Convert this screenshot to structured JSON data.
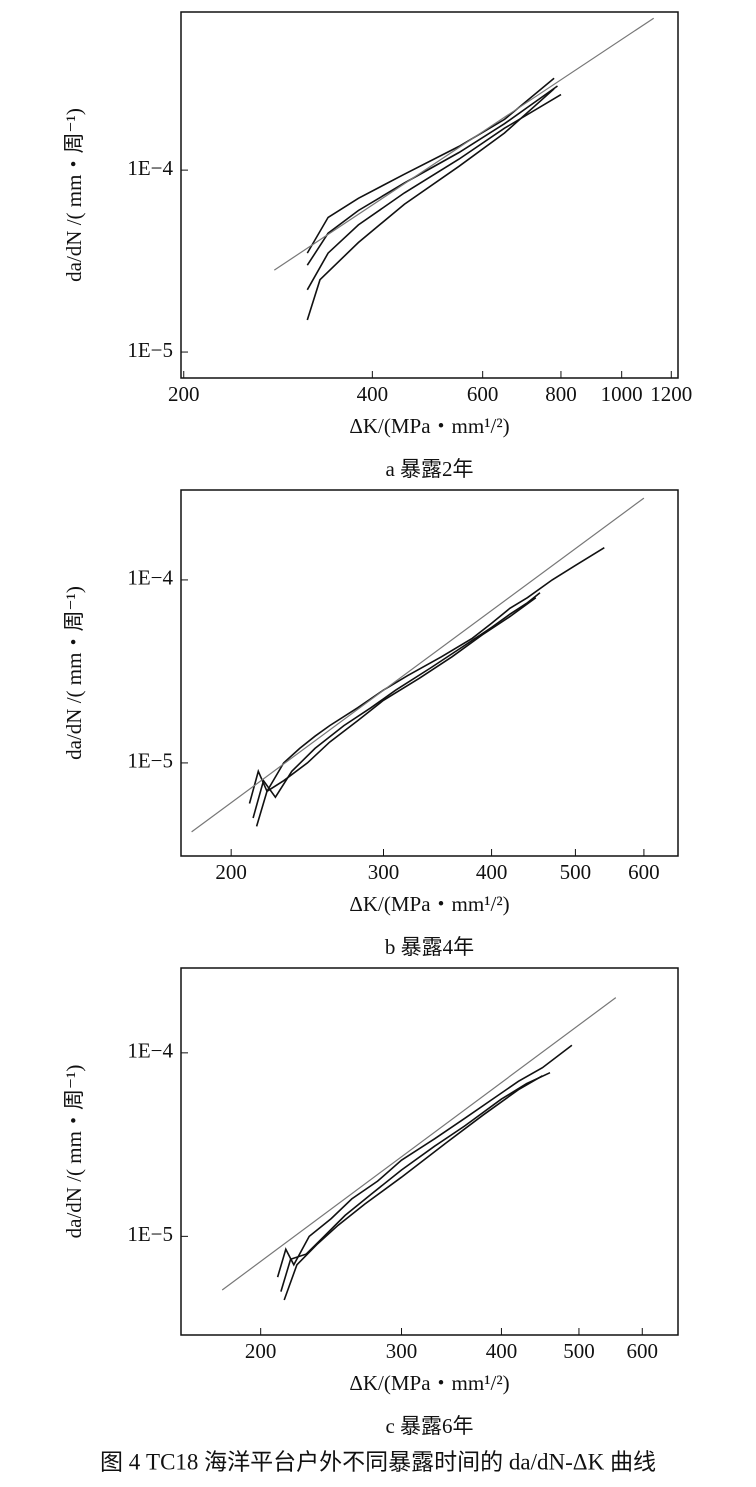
{
  "chart_data": [
    {
      "type": "line",
      "xscale": "log",
      "yscale": "log",
      "xlabel": "ΔK/(MPa・mm¹/²)",
      "ylabel": "da/dN /( mm・周⁻¹)",
      "caption": "a  暴露2年",
      "xlim": [
        198,
        1230
      ],
      "ylim": [
        7.2e-06,
        0.00074
      ],
      "xticks": [
        200,
        400,
        600,
        800,
        1000,
        1200
      ],
      "yticks": [
        {
          "value": 1e-05,
          "label": "1E−5"
        },
        {
          "value": 0.0001,
          "label": "1E−4"
        }
      ],
      "series": [
        {
          "color": "#111111",
          "x": [
            315,
            340,
            380,
            450,
            550,
            650,
            780
          ],
          "values": [
            3.5e-05,
            5.5e-05,
            7e-05,
            9.5e-05,
            0.000135,
            0.00019,
            0.00032
          ]
        },
        {
          "color": "#111111",
          "x": [
            315,
            340,
            380,
            450,
            550,
            650,
            790
          ],
          "values": [
            3e-05,
            4.5e-05,
            6e-05,
            8.5e-05,
            0.000125,
            0.00018,
            0.00029
          ]
        },
        {
          "color": "#111111",
          "x": [
            315,
            340,
            380,
            450,
            550,
            650,
            800
          ],
          "values": [
            2.2e-05,
            3.5e-05,
            5e-05,
            7.5e-05,
            0.000115,
            0.00017,
            0.00026
          ]
        },
        {
          "color": "#111111",
          "x": [
            315,
            330,
            380,
            450,
            550,
            650,
            780
          ],
          "values": [
            1.5e-05,
            2.5e-05,
            4e-05,
            6.5e-05,
            0.000105,
            0.00016,
            0.00028
          ]
        },
        {
          "color": "#777777",
          "x": [
            279,
            1125
          ],
          "values": [
            2.82e-05,
            0.000684
          ]
        }
      ]
    },
    {
      "type": "line",
      "xscale": "log",
      "yscale": "log",
      "xlabel": "ΔK/(MPa・mm¹/²)",
      "ylabel": "da/dN /( mm・周⁻¹)",
      "caption": "b  暴露4年",
      "xlim": [
        175,
        657
      ],
      "ylim": [
        3.1e-06,
        0.00031
      ],
      "xticks": [
        200,
        300,
        400,
        500,
        600
      ],
      "yticks": [
        {
          "value": 1e-05,
          "label": "1E−5"
        },
        {
          "value": 0.0001,
          "label": "1E−4"
        }
      ],
      "series": [
        {
          "color": "#111111",
          "x": [
            210,
            215,
            220,
            230,
            240,
            250,
            260,
            280,
            300,
            320,
            350,
            380,
            400,
            420,
            440,
            470,
            500,
            540
          ],
          "values": [
            6e-06,
            9e-06,
            7e-06,
            1e-05,
            1.2e-05,
            1.4e-05,
            1.6e-05,
            2e-05,
            2.5e-05,
            3e-05,
            3.8e-05,
            4.8e-05,
            5.8e-05,
            7e-05,
            8e-05,
            0.0001,
            0.00012,
            0.00015
          ]
        },
        {
          "color": "#111111",
          "x": [
            212,
            218,
            225,
            235,
            250,
            270,
            290,
            310,
            340,
            370,
            400,
            420,
            440,
            455
          ],
          "values": [
            5e-06,
            8e-06,
            6.5e-06,
            9e-06,
            1.2e-05,
            1.6e-05,
            2e-05,
            2.5e-05,
            3.3e-05,
            4.3e-05,
            5.5e-05,
            6.5e-05,
            7.5e-05,
            8.5e-05
          ]
        },
        {
          "color": "#111111",
          "x": [
            214,
            220,
            230,
            245,
            260,
            280,
            300,
            330,
            360,
            390,
            420,
            450
          ],
          "values": [
            4.5e-06,
            7e-06,
            8e-06,
            1e-05,
            1.3e-05,
            1.7e-05,
            2.2e-05,
            2.9e-05,
            3.8e-05,
            5e-05,
            6.3e-05,
            8e-05
          ]
        },
        {
          "color": "#777777",
          "x": [
            180,
            600
          ],
          "values": [
            4.2e-06,
            0.00028
          ]
        }
      ]
    },
    {
      "type": "line",
      "xscale": "log",
      "yscale": "log",
      "xlabel": "ΔK/(MPa・mm¹/²)",
      "ylabel": "da/dN /( mm・周⁻¹)",
      "caption": "c  暴露6年",
      "xlim": [
        159,
        665
      ],
      "ylim": [
        2.9e-06,
        0.00029
      ],
      "xticks": [
        200,
        300,
        400,
        500,
        600
      ],
      "yticks": [
        {
          "value": 1e-05,
          "label": "1E−5"
        },
        {
          "value": 0.0001,
          "label": "1E−4"
        }
      ],
      "series": [
        {
          "color": "#111111",
          "x": [
            210,
            215,
            220,
            230,
            245,
            260,
            280,
            300,
            330,
            360,
            390,
            420,
            450,
            490
          ],
          "values": [
            6e-06,
            8.5e-06,
            7e-06,
            1e-05,
            1.25e-05,
            1.6e-05,
            2e-05,
            2.6e-05,
            3.4e-05,
            4.4e-05,
            5.6e-05,
            7e-05,
            8.3e-05,
            0.00011
          ]
        },
        {
          "color": "#111111",
          "x": [
            212,
            218,
            228,
            240,
            255,
            275,
            300,
            330,
            360,
            400,
            430,
            460
          ],
          "values": [
            5e-06,
            7.5e-06,
            8e-06,
            1e-05,
            1.3e-05,
            1.7e-05,
            2.3e-05,
            3.1e-05,
            4e-05,
            5.6e-05,
            6.8e-05,
            7.8e-05
          ]
        },
        {
          "color": "#111111",
          "x": [
            214,
            222,
            235,
            250,
            270,
            300,
            340,
            380,
            420,
            450
          ],
          "values": [
            4.5e-06,
            7e-06,
            9e-06,
            1.15e-05,
            1.5e-05,
            2.1e-05,
            3.2e-05,
            4.6e-05,
            6.3e-05,
            7.5e-05
          ]
        },
        {
          "color": "#777777",
          "x": [
            179,
            556
          ],
          "values": [
            5.1e-06,
            0.0002
          ]
        }
      ]
    }
  ],
  "figure_caption": "图 4   TC18 海洋平台户外不同暴露时间的 da/dN-ΔK 曲线"
}
